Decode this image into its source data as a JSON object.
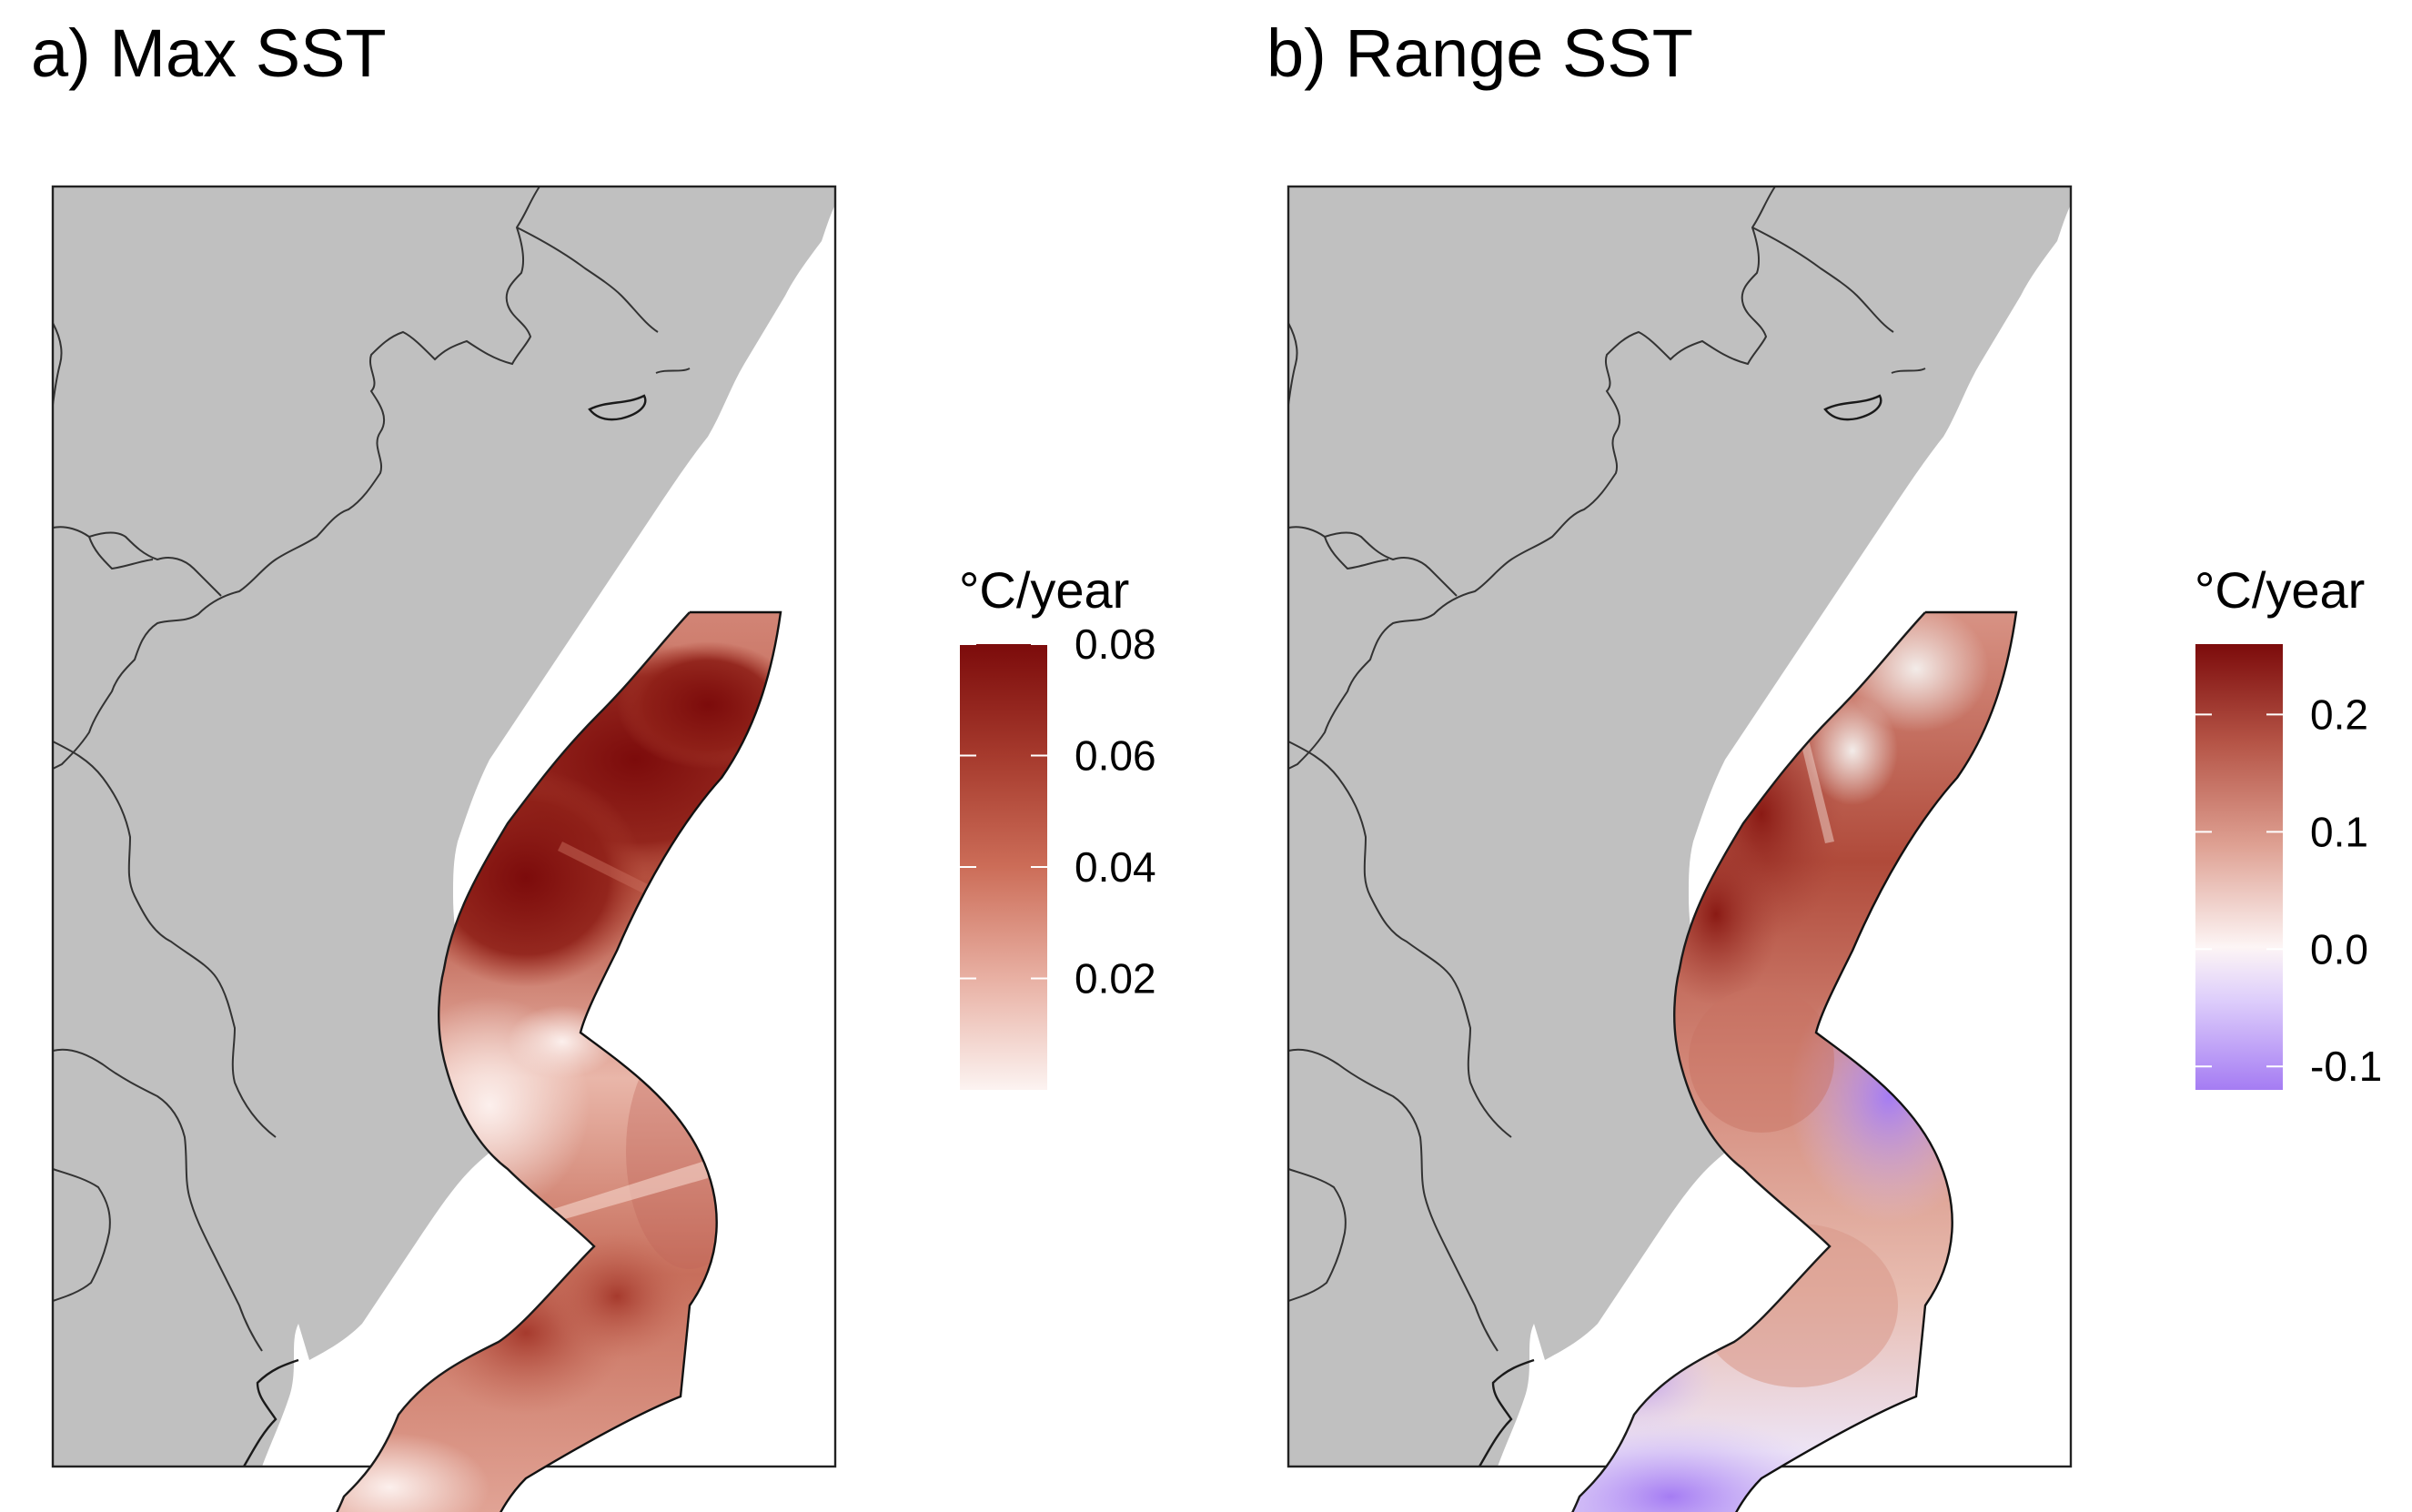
{
  "panels": [
    {
      "id": "a",
      "title": "a) Max SST",
      "variable": "Max SST trend",
      "legend": {
        "title": "°C/year",
        "ticks": [
          "0.08",
          "0.06",
          "0.04",
          "0.02"
        ],
        "min": 0.0,
        "max": 0.08,
        "colors": [
          "#fcf3f1",
          "#e8b0a3",
          "#cc6d58",
          "#a63a2d",
          "#7c0b0b"
        ]
      }
    },
    {
      "id": "b",
      "title": "b) Range SST",
      "variable": "Range SST trend",
      "legend": {
        "title": "°C/year",
        "ticks": [
          "0.2",
          "0.1",
          "0.0",
          "-0.1"
        ],
        "min": -0.12,
        "max": 0.26,
        "colors": [
          "#a57cf3",
          "#ddcdfb",
          "#fdf5f5",
          "#dea092",
          "#b55446",
          "#7c0b0b"
        ]
      }
    }
  ],
  "colors": {
    "land": "#c0c0c0",
    "background": "#ffffff",
    "outline": "#1a1a1a"
  }
}
